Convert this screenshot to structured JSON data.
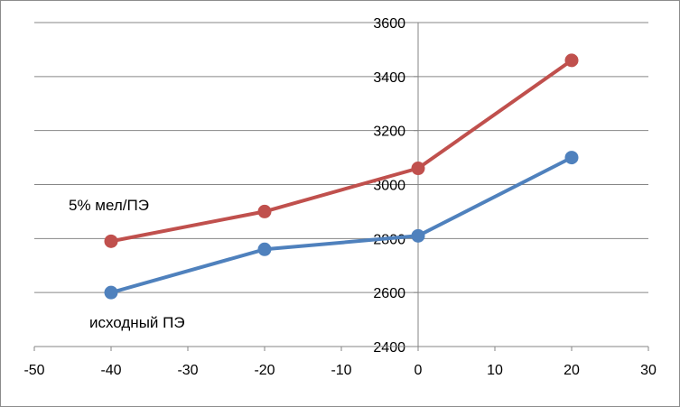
{
  "chart_data": {
    "type": "line",
    "title": "",
    "xlabel": "",
    "ylabel": "",
    "xlim": [
      -50,
      30
    ],
    "ylim": [
      2400,
      3600
    ],
    "x_ticks": [
      -50,
      -40,
      -30,
      -20,
      -10,
      0,
      10,
      20,
      30
    ],
    "y_ticks": [
      2400,
      2600,
      2800,
      3000,
      3200,
      3400,
      3600
    ],
    "grid": "horizontal",
    "legend": "none",
    "series": [
      {
        "name": "5% мел/ПЭ",
        "color": "#c0504d",
        "x": [
          -40,
          -20,
          0,
          20
        ],
        "values": [
          2790,
          2900,
          3060,
          3460
        ]
      },
      {
        "name": "исходный ПЭ",
        "color": "#4f81bd",
        "x": [
          -40,
          -20,
          0,
          20
        ],
        "values": [
          2600,
          2760,
          2810,
          3100
        ]
      }
    ]
  }
}
